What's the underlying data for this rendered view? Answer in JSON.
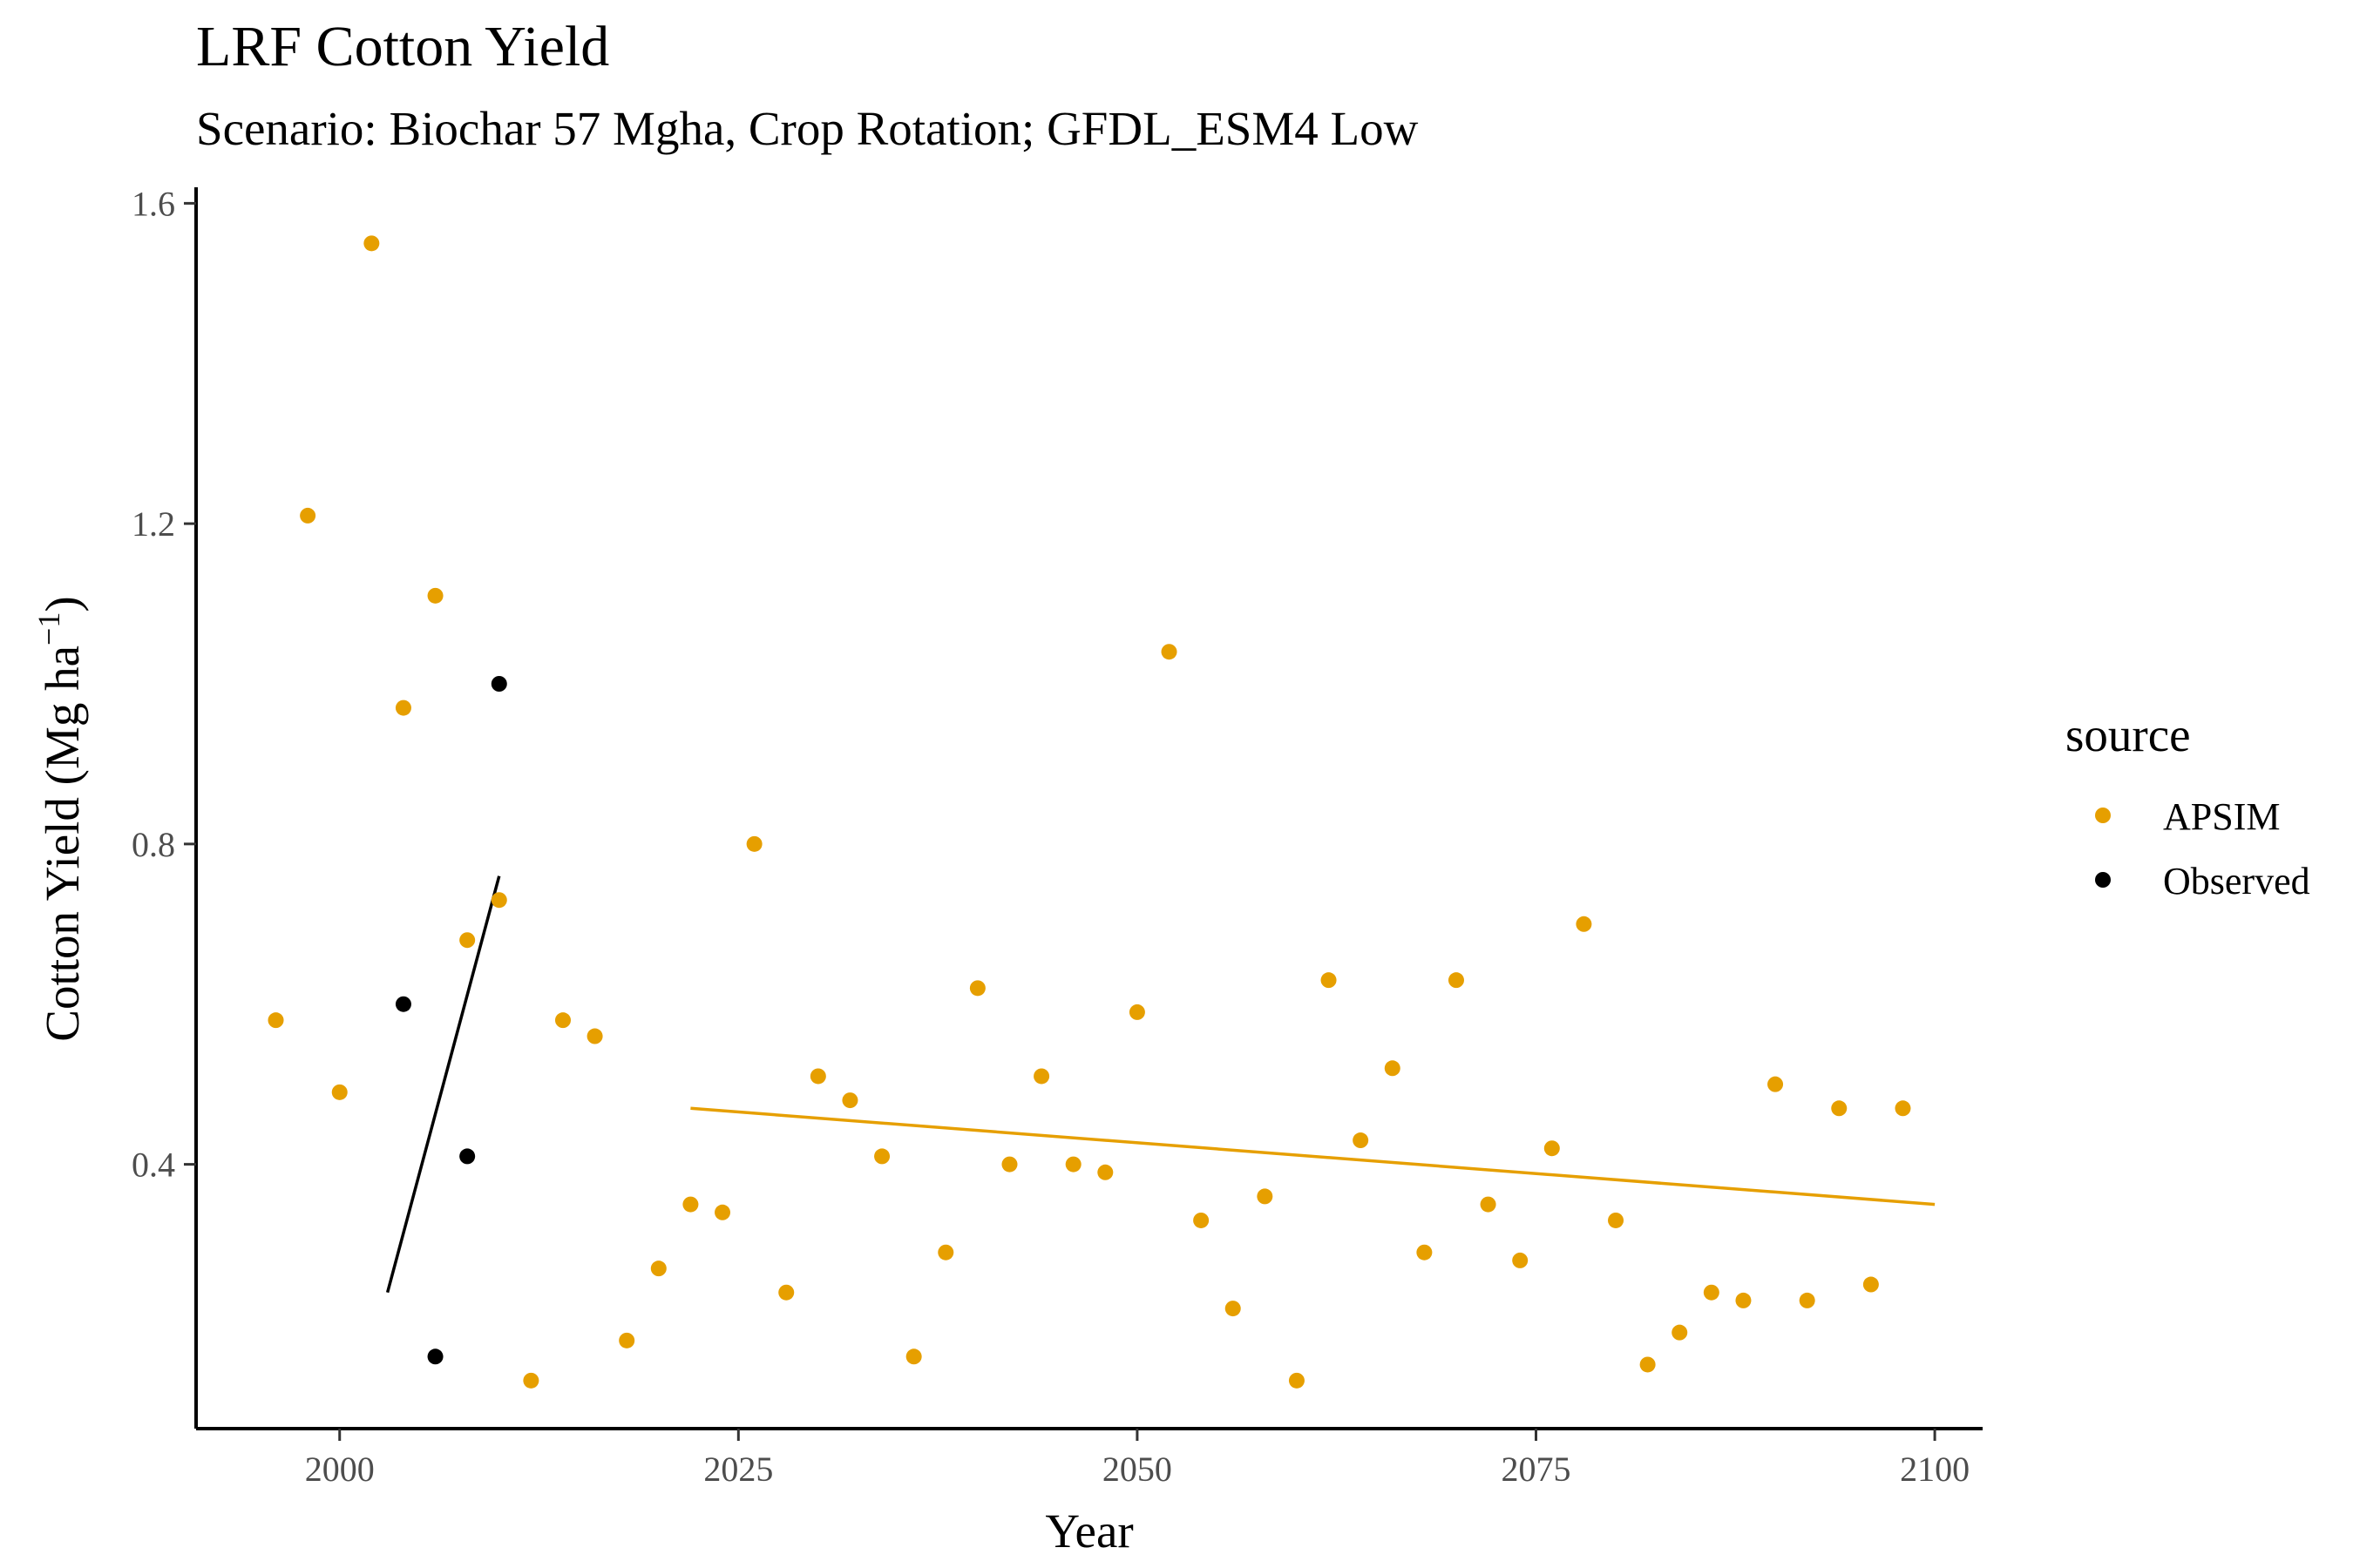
{
  "chart_data": {
    "type": "scatter",
    "title": "LRF Cotton Yield",
    "subtitle": "Scenario: Biochar 57 Mgha, Crop Rotation; GFDL_ESM4 Low",
    "xlabel": "Year",
    "ylabel": "Cotton Yield (Mg ha",
    "ylabel_superscript": "−1",
    "ylabel_suffix": ")",
    "xlim": [
      1991,
      2103
    ],
    "ylim": [
      0.07,
      1.62
    ],
    "xticks": [
      "2000",
      "2025",
      "2050",
      "2075",
      "2100"
    ],
    "yticks": [
      "0.4",
      "0.8",
      "1.2",
      "1.6"
    ],
    "grid": false,
    "legend": {
      "title": "source",
      "position": "right"
    },
    "series": [
      {
        "name": "APSIM",
        "color": "#E69F00",
        "points": [
          [
            1996,
            0.58
          ],
          [
            1998,
            1.21
          ],
          [
            2000,
            0.49
          ],
          [
            2002,
            1.55
          ],
          [
            2004,
            0.97
          ],
          [
            2006,
            1.11
          ],
          [
            2008,
            0.68
          ],
          [
            2010,
            0.73
          ],
          [
            2012,
            0.13
          ],
          [
            2014,
            0.58
          ],
          [
            2016,
            0.56
          ],
          [
            2018,
            0.18
          ],
          [
            2020,
            0.27
          ],
          [
            2022,
            0.35
          ],
          [
            2024,
            0.34
          ],
          [
            2026,
            0.8
          ],
          [
            2028,
            0.24
          ],
          [
            2030,
            0.51
          ],
          [
            2032,
            0.48
          ],
          [
            2034,
            0.41
          ],
          [
            2036,
            0.16
          ],
          [
            2038,
            0.29
          ],
          [
            2040,
            0.62
          ],
          [
            2042,
            0.4
          ],
          [
            2044,
            0.51
          ],
          [
            2046,
            0.4
          ],
          [
            2048,
            0.39
          ],
          [
            2050,
            0.59
          ],
          [
            2052,
            1.04
          ],
          [
            2054,
            0.33
          ],
          [
            2056,
            0.22
          ],
          [
            2058,
            0.36
          ],
          [
            2060,
            0.13
          ],
          [
            2062,
            0.63
          ],
          [
            2064,
            0.43
          ],
          [
            2066,
            0.52
          ],
          [
            2068,
            0.29
          ],
          [
            2070,
            0.63
          ],
          [
            2072,
            0.35
          ],
          [
            2074,
            0.28
          ],
          [
            2076,
            0.42
          ],
          [
            2078,
            0.7
          ],
          [
            2080,
            0.33
          ],
          [
            2082,
            0.15
          ],
          [
            2084,
            0.19
          ],
          [
            2086,
            0.24
          ],
          [
            2088,
            0.23
          ],
          [
            2090,
            0.5
          ],
          [
            2092,
            0.23
          ],
          [
            2094,
            0.47
          ],
          [
            2096,
            0.25
          ],
          [
            2098,
            0.47
          ]
        ],
        "trend": [
          [
            2022,
            0.47
          ],
          [
            2100,
            0.35
          ]
        ]
      },
      {
        "name": "Observed",
        "color": "#000000",
        "points": [
          [
            2004,
            0.6
          ],
          [
            2006,
            0.16
          ],
          [
            2008,
            0.41
          ],
          [
            2010,
            1.0
          ]
        ],
        "trend": [
          [
            2003,
            0.24
          ],
          [
            2010,
            0.76
          ]
        ]
      }
    ]
  }
}
